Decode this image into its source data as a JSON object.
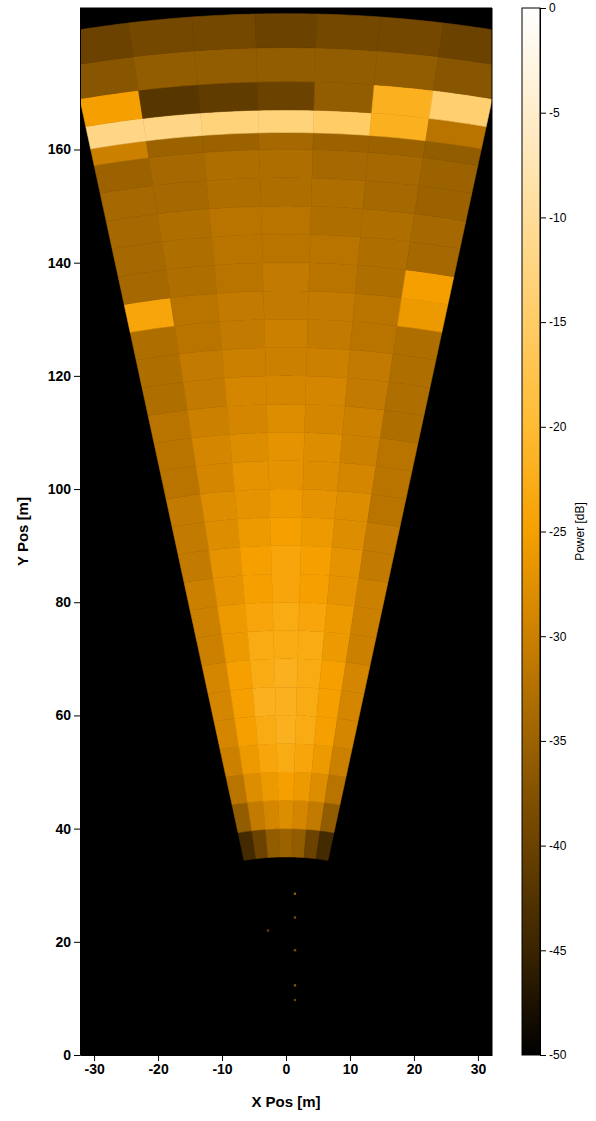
{
  "chart_data": {
    "type": "heatmap",
    "x_label": "X Pos [m]",
    "y_label": "Y Pos [m]",
    "xlim": [
      -32.2,
      32.2
    ],
    "ylim": [
      0,
      185
    ],
    "xticks": [
      -30,
      -20,
      -10,
      0,
      10,
      20,
      30
    ],
    "yticks": [
      0,
      20,
      40,
      60,
      80,
      100,
      120,
      140,
      160
    ],
    "ranges": [
      35,
      40,
      45,
      50,
      55,
      60,
      65,
      70,
      75,
      80,
      85,
      90,
      95,
      100,
      105,
      110,
      115,
      120,
      125,
      130,
      135,
      140,
      145,
      150,
      155,
      160,
      163,
      167,
      172,
      178,
      184
    ],
    "angles": [
      -10.8,
      -7.7,
      -4.6,
      -1.5,
      1.5,
      4.6,
      7.7,
      10.8
    ],
    "cells": [
      [
        -44,
        -40,
        -36,
        -35,
        -36,
        -40,
        -44
      ],
      [
        -36,
        -31,
        -29,
        -28,
        -29,
        -31,
        -36
      ],
      [
        -32,
        -28,
        -26,
        -25,
        -26,
        -28,
        -32
      ],
      [
        -30,
        -26,
        -24,
        -23,
        -24,
        -26,
        -30
      ],
      [
        -29,
        -25,
        -23,
        -22,
        -23,
        -25,
        -29
      ],
      [
        -29,
        -25,
        -22,
        -22,
        -23,
        -25,
        -29
      ],
      [
        -29,
        -25,
        -23,
        -22,
        -23,
        -25,
        -29
      ],
      [
        -30,
        -26,
        -23,
        -23,
        -23,
        -26,
        -30
      ],
      [
        -30,
        -26,
        -24,
        -23,
        -24,
        -26,
        -30
      ],
      [
        -30,
        -27,
        -25,
        -24,
        -25,
        -27,
        -30
      ],
      [
        -31,
        -27,
        -25,
        -24,
        -25,
        -27,
        -31
      ],
      [
        -31,
        -28,
        -26,
        -25,
        -26,
        -28,
        -31
      ],
      [
        -31,
        -28,
        -27,
        -26,
        -27,
        -28,
        -32
      ],
      [
        -32,
        -29,
        -27,
        -27,
        -28,
        -29,
        -32
      ],
      [
        -32,
        -29,
        -28,
        -27,
        -28,
        -30,
        -32
      ],
      [
        -32,
        -30,
        -29,
        -28,
        -29,
        -30,
        -33
      ],
      [
        -33,
        -31,
        -29,
        -29,
        -29,
        -31,
        -33
      ],
      [
        -33,
        -31,
        -30,
        -30,
        -30,
        -31,
        -33
      ],
      [
        -33,
        -32,
        -31,
        -30,
        -31,
        -32,
        -33
      ],
      [
        -24,
        -32,
        -31,
        -31,
        -31,
        -32,
        -26
      ],
      [
        -34,
        -33,
        -32,
        -31,
        -32,
        -33,
        -25
      ],
      [
        -34,
        -33,
        -32,
        -32,
        -32,
        -33,
        -34
      ],
      [
        -34,
        -33,
        -32,
        -32,
        -33,
        -33,
        -34
      ],
      [
        -34,
        -34,
        -33,
        -33,
        -33,
        -34,
        -35
      ],
      [
        -35,
        -34,
        -33,
        -33,
        -34,
        -34,
        -35
      ],
      [
        -30,
        -35,
        -35,
        -34,
        -35,
        -35,
        -36
      ],
      [
        -12,
        -12,
        -13,
        -13,
        -15,
        -22,
        -32
      ],
      [
        -25,
        -42,
        -41,
        -40,
        -36,
        -22,
        -14
      ],
      [
        -37,
        -36,
        -36,
        -36,
        -36,
        -36,
        -37
      ],
      [
        -40,
        -39,
        -39,
        -40,
        -39,
        -39,
        -40
      ]
    ],
    "points": {
      "x": [
        1.4,
        1.4,
        -2.8,
        1.4,
        1.4,
        1.4
      ],
      "y": [
        28.5,
        24.3,
        22.0,
        18.5,
        12.3,
        9.7
      ],
      "values": [
        -35,
        -38,
        -40,
        -38,
        -38,
        -40
      ]
    },
    "colorbar": {
      "label": "Power [dB]",
      "range": [
        -50,
        0
      ],
      "ticks": [
        0,
        -5,
        -10,
        -15,
        -20,
        -25,
        -30,
        -35,
        -40,
        -45,
        -50
      ]
    }
  }
}
